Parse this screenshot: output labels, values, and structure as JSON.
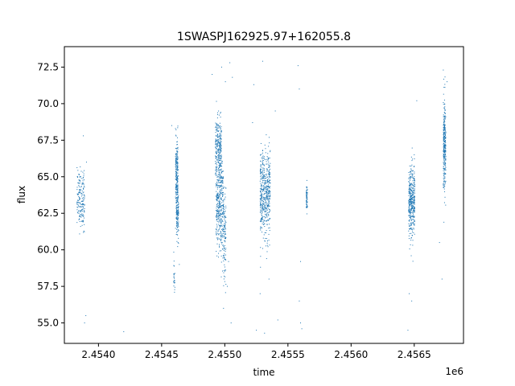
{
  "chart_data": {
    "type": "scatter",
    "title": "1SWASPJ162925.97+162055.8",
    "xlabel": "time",
    "ylabel": "flux",
    "x_offset_label": "1e6",
    "xlim": [
      2453730,
      2456890
    ],
    "ylim": [
      53.6,
      73.9
    ],
    "x_ticks": [
      2454000,
      2454500,
      2455000,
      2455500,
      2456000,
      2456500
    ],
    "x_tick_labels": [
      "2.4540",
      "2.4545",
      "2.4550",
      "2.4555",
      "2.4560",
      "2.4565"
    ],
    "y_ticks": [
      55.0,
      57.5,
      60.0,
      62.5,
      65.0,
      67.5,
      70.0,
      72.5
    ],
    "y_tick_labels": [
      "55.0",
      "57.5",
      "60.0",
      "62.5",
      "65.0",
      "67.5",
      "70.0",
      "72.5"
    ],
    "grid": false,
    "marker_color": "#1f77b4",
    "clusters": [
      {
        "x_center": 2453860,
        "x_spread": 30,
        "y_center": 63.5,
        "y_spread": 1.0,
        "n": 180
      },
      {
        "x_center": 2454620,
        "x_spread": 10,
        "y_center": 65.3,
        "y_spread": 1.1,
        "n": 200
      },
      {
        "x_center": 2454625,
        "x_spread": 10,
        "y_center": 62.5,
        "y_spread": 0.8,
        "n": 150
      },
      {
        "x_center": 2454600,
        "x_spread": 5,
        "y_center": 58.0,
        "y_spread": 0.6,
        "n": 25
      },
      {
        "x_center": 2454950,
        "x_spread": 25,
        "y_center": 67.0,
        "y_spread": 1.0,
        "n": 250
      },
      {
        "x_center": 2454960,
        "x_spread": 30,
        "y_center": 63.0,
        "y_spread": 1.7,
        "n": 400
      },
      {
        "x_center": 2455000,
        "x_spread": 10,
        "y_center": 61.0,
        "y_spread": 1.5,
        "n": 100
      },
      {
        "x_center": 2455320,
        "x_spread": 40,
        "y_center": 63.8,
        "y_spread": 1.5,
        "n": 500
      },
      {
        "x_center": 2455650,
        "x_spread": 5,
        "y_center": 63.5,
        "y_spread": 0.5,
        "n": 60
      },
      {
        "x_center": 2456480,
        "x_spread": 25,
        "y_center": 63.2,
        "y_spread": 1.2,
        "n": 400
      },
      {
        "x_center": 2456740,
        "x_spread": 10,
        "y_center": 67.3,
        "y_spread": 1.6,
        "n": 300
      }
    ],
    "scattered_outliers": [
      [
        2453900,
        55.5
      ],
      [
        2453890,
        55.0
      ],
      [
        2454200,
        54.4
      ],
      [
        2453880,
        67.8
      ],
      [
        2453905,
        66.0
      ],
      [
        2454580,
        68.5
      ],
      [
        2454630,
        60.5
      ],
      [
        2454640,
        59.0
      ],
      [
        2454900,
        72.0
      ],
      [
        2454950,
        59.5
      ],
      [
        2454975,
        72.5
      ],
      [
        2455005,
        71.5
      ],
      [
        2455020,
        57.5
      ],
      [
        2455040,
        72.8
      ],
      [
        2455050,
        55.0
      ],
      [
        2455060,
        71.8
      ],
      [
        2455030,
        59.2
      ],
      [
        2454990,
        56.0
      ],
      [
        2455220,
        68.7
      ],
      [
        2455230,
        71.3
      ],
      [
        2455250,
        54.5
      ],
      [
        2455280,
        57.0
      ],
      [
        2455300,
        72.9
      ],
      [
        2455315,
        54.3
      ],
      [
        2455350,
        58.0
      ],
      [
        2455400,
        69.5
      ],
      [
        2455420,
        55.2
      ],
      [
        2455580,
        72.6
      ],
      [
        2455590,
        71.0
      ],
      [
        2455600,
        55.0
      ],
      [
        2455610,
        54.6
      ],
      [
        2455600,
        59.2
      ],
      [
        2455590,
        56.5
      ],
      [
        2456450,
        54.5
      ],
      [
        2456460,
        57.0
      ],
      [
        2456480,
        56.5
      ],
      [
        2456500,
        66.5
      ],
      [
        2456520,
        70.2
      ],
      [
        2456700,
        60.5
      ],
      [
        2456720,
        58.0
      ],
      [
        2456730,
        72.3
      ],
      [
        2456760,
        71.5
      ]
    ]
  }
}
